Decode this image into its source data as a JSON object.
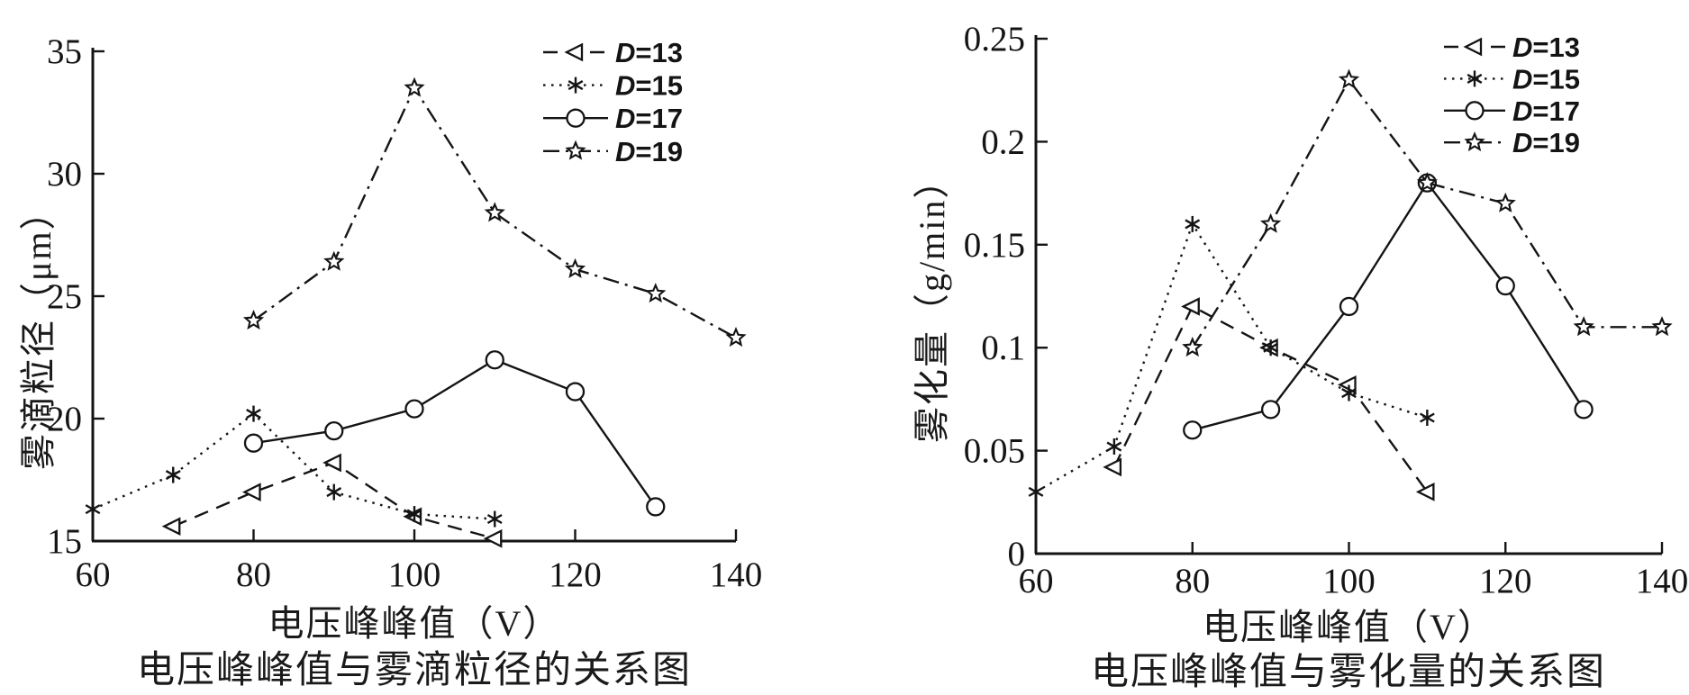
{
  "colors": {
    "ink": "#141414",
    "background": "#ffffff"
  },
  "charts": [
    {
      "id": "droplet-size-chart",
      "xlabel": "电压峰峰值（V）",
      "ylabel": "雾滴粒径（μm）",
      "caption": "电压峰峰值与雾滴粒径的关系图",
      "xlim": [
        60,
        140
      ],
      "ylim": [
        15,
        35
      ],
      "xticks": [
        60,
        80,
        100,
        120,
        140
      ],
      "xtick_labels": [
        "60",
        "80",
        "100",
        "120",
        "140"
      ],
      "yticks": [
        15,
        20,
        25,
        30,
        35
      ],
      "ytick_labels": [
        "15",
        "20",
        "25",
        "30",
        "35"
      ],
      "legend_position": "upper-right",
      "grid": false,
      "chart_data": {
        "type": "line",
        "series": [
          {
            "name": "D=13",
            "marker": "triangle-left",
            "line": "dashed",
            "x": [
              70,
              80,
              90,
              100,
              110
            ],
            "y": [
              15.6,
              17.0,
              18.2,
              16.0,
              15.1
            ]
          },
          {
            "name": "D=15",
            "marker": "asterisk",
            "line": "dotted",
            "x": [
              60,
              70,
              80,
              90,
              100,
              110
            ],
            "y": [
              16.3,
              17.7,
              20.2,
              17.0,
              16.1,
              15.9
            ]
          },
          {
            "name": "D=17",
            "marker": "circle",
            "line": "solid",
            "x": [
              80,
              90,
              100,
              110,
              120,
              130
            ],
            "y": [
              19.0,
              19.5,
              20.4,
              22.4,
              21.1,
              16.4
            ]
          },
          {
            "name": "D=19",
            "marker": "pentagram",
            "line": "dashdot",
            "x": [
              80,
              90,
              100,
              110,
              120,
              130,
              140
            ],
            "y": [
              24.0,
              26.4,
              33.5,
              28.4,
              26.1,
              25.1,
              23.3
            ]
          }
        ]
      }
    },
    {
      "id": "atomization-chart",
      "xlabel": "电压峰峰值（V）",
      "ylabel": "雾化量（g/min）",
      "caption": "电压峰峰值与雾化量的关系图",
      "xlim": [
        60,
        140
      ],
      "ylim": [
        0,
        0.25
      ],
      "xticks": [
        60,
        80,
        100,
        120,
        140
      ],
      "xtick_labels": [
        "60",
        "80",
        "100",
        "120",
        "140"
      ],
      "yticks": [
        0,
        0.05,
        0.1,
        0.15,
        0.2,
        0.25
      ],
      "ytick_labels": [
        "0",
        "0.05",
        "0.1",
        "0.15",
        "0.2",
        "0.25"
      ],
      "legend_position": "upper-right",
      "grid": false,
      "chart_data": {
        "type": "line",
        "series": [
          {
            "name": "D=13",
            "marker": "triangle-left",
            "line": "dashed",
            "x": [
              70,
              80,
              90,
              100,
              110
            ],
            "y": [
              0.042,
              0.12,
              0.1,
              0.082,
              0.03
            ]
          },
          {
            "name": "D=15",
            "marker": "asterisk",
            "line": "dotted",
            "x": [
              60,
              70,
              80,
              90,
              100,
              110
            ],
            "y": [
              0.03,
              0.052,
              0.16,
              0.1,
              0.078,
              0.066
            ]
          },
          {
            "name": "D=17",
            "marker": "circle",
            "line": "solid",
            "x": [
              80,
              90,
              100,
              110,
              120,
              130
            ],
            "y": [
              0.06,
              0.07,
              0.12,
              0.18,
              0.13,
              0.07
            ]
          },
          {
            "name": "D=19",
            "marker": "pentagram",
            "line": "dashdot",
            "x": [
              80,
              90,
              100,
              110,
              120,
              130,
              140
            ],
            "y": [
              0.1,
              0.16,
              0.23,
              0.18,
              0.17,
              0.11,
              0.11
            ]
          }
        ]
      }
    }
  ]
}
